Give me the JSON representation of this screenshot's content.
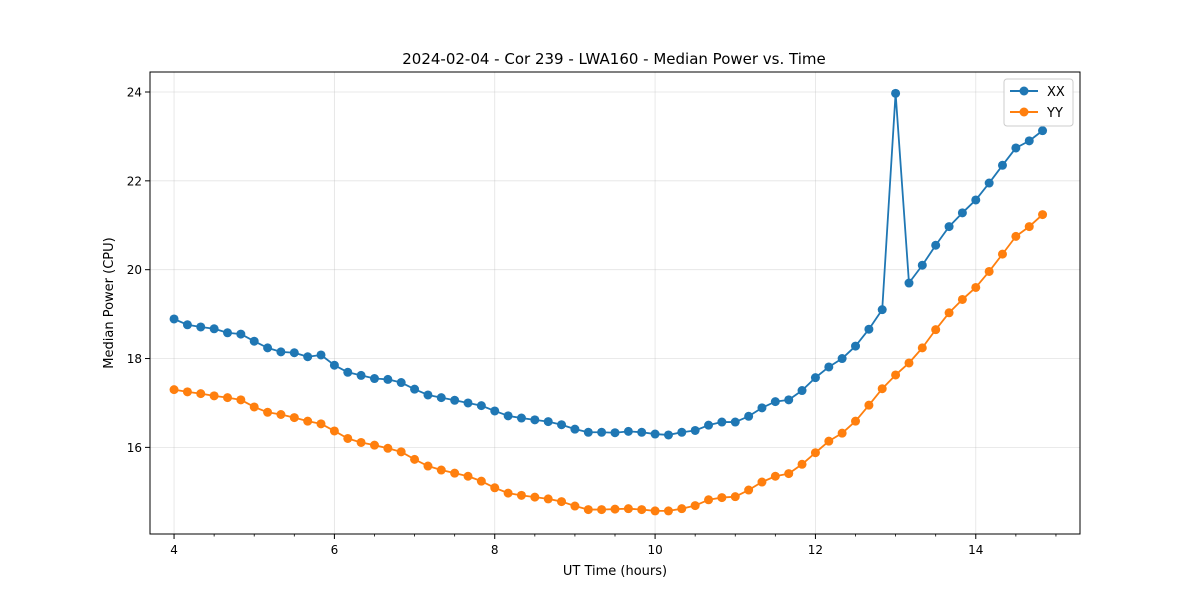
{
  "chart_data": {
    "type": "line",
    "title": "2024-02-04 - Cor 239 - LWA160 - Median Power vs. Time",
    "xlabel": "UT Time (hours)",
    "ylabel": "Median Power (CPU)",
    "xlim": [
      3.7,
      15.3
    ],
    "ylim": [
      14.05,
      24.45
    ],
    "xticks": [
      4,
      6,
      8,
      10,
      12,
      14
    ],
    "yticks": [
      16,
      18,
      20,
      22,
      24
    ],
    "xtick_labels": [
      "4",
      "6",
      "8",
      "10",
      "12",
      "14"
    ],
    "ytick_labels": [
      "16",
      "18",
      "20",
      "22",
      "24"
    ],
    "grid": true,
    "legend_position": "top-right",
    "x": [
      4.0,
      4.167,
      4.333,
      4.5,
      4.667,
      4.833,
      5.0,
      5.167,
      5.333,
      5.5,
      5.667,
      5.833,
      6.0,
      6.167,
      6.333,
      6.5,
      6.667,
      6.833,
      7.0,
      7.167,
      7.333,
      7.5,
      7.667,
      7.833,
      8.0,
      8.167,
      8.333,
      8.5,
      8.667,
      8.833,
      9.0,
      9.167,
      9.333,
      9.5,
      9.667,
      9.833,
      10.0,
      10.167,
      10.333,
      10.5,
      10.667,
      10.833,
      11.0,
      11.167,
      11.333,
      11.5,
      11.667,
      11.833,
      12.0,
      12.167,
      12.333,
      12.5,
      12.667,
      12.833,
      13.0,
      13.167,
      13.333,
      13.5,
      13.667,
      13.833,
      14.0,
      14.167,
      14.333,
      14.5,
      14.667,
      14.833
    ],
    "series": [
      {
        "name": "XX",
        "color": "#1f77b4",
        "values": [
          18.89,
          18.76,
          18.71,
          18.67,
          18.58,
          18.55,
          18.39,
          18.24,
          18.15,
          18.13,
          18.04,
          18.08,
          17.85,
          17.69,
          17.62,
          17.55,
          17.53,
          17.46,
          17.31,
          17.18,
          17.12,
          17.06,
          17.0,
          16.94,
          16.82,
          16.71,
          16.66,
          16.62,
          16.58,
          16.51,
          16.41,
          16.34,
          16.34,
          16.33,
          16.36,
          16.34,
          16.3,
          16.28,
          16.34,
          16.38,
          16.5,
          16.57,
          16.57,
          16.7,
          16.89,
          17.03,
          17.07,
          17.28,
          17.57,
          17.81,
          18.0,
          18.28,
          18.66,
          19.1,
          23.97,
          19.7,
          20.1,
          20.55,
          20.97,
          21.28,
          21.57,
          21.95,
          22.35,
          22.74,
          22.9,
          23.13
        ]
      },
      {
        "name": "YY",
        "color": "#ff7f0e",
        "values": [
          17.3,
          17.25,
          17.21,
          17.16,
          17.12,
          17.07,
          16.91,
          16.79,
          16.74,
          16.67,
          16.59,
          16.53,
          16.37,
          16.2,
          16.11,
          16.05,
          15.98,
          15.9,
          15.73,
          15.58,
          15.49,
          15.42,
          15.35,
          15.24,
          15.09,
          14.97,
          14.92,
          14.88,
          14.84,
          14.78,
          14.68,
          14.6,
          14.6,
          14.61,
          14.62,
          14.6,
          14.57,
          14.57,
          14.62,
          14.69,
          14.82,
          14.87,
          14.89,
          15.04,
          15.22,
          15.35,
          15.41,
          15.62,
          15.88,
          16.14,
          16.32,
          16.59,
          16.95,
          17.32,
          17.63,
          17.9,
          18.24,
          18.65,
          19.03,
          19.33,
          19.6,
          19.96,
          20.35,
          20.75,
          20.97,
          21.24
        ]
      }
    ]
  }
}
